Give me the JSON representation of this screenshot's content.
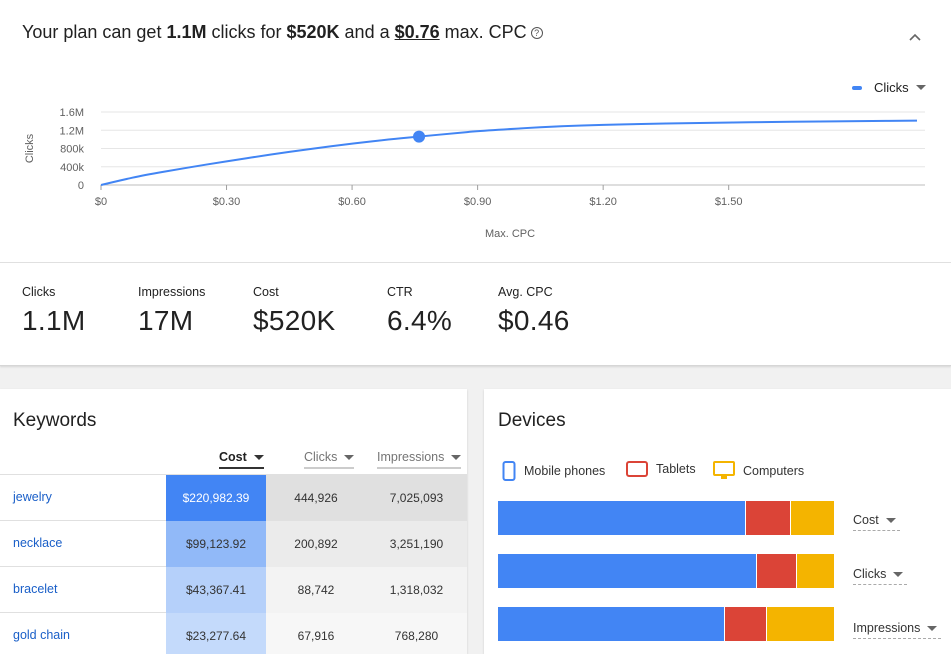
{
  "headline": {
    "prefix": "Your plan can get ",
    "clicks": "1.1M",
    "mid1": " clicks for ",
    "cost": "$520K",
    "mid2": " and a ",
    "cpc": "$0.76",
    "suffix": " max. CPC",
    "help_icon": "?"
  },
  "chart_data": {
    "type": "line",
    "series": [
      {
        "name": "Clicks",
        "color": "#4285f4",
        "x": [
          0,
          0.05,
          0.1,
          0.2,
          0.3,
          0.4,
          0.5,
          0.6,
          0.7,
          0.76,
          0.85,
          0.9,
          1.0,
          1.1,
          1.2,
          1.3,
          1.4,
          1.5,
          1.6,
          1.7,
          1.8,
          1.95
        ],
        "y": [
          0,
          110000,
          210000,
          370000,
          520000,
          660000,
          790000,
          910000,
          1010000,
          1060000,
          1140000,
          1180000,
          1240000,
          1290000,
          1320000,
          1340000,
          1355000,
          1370000,
          1380000,
          1390000,
          1400000,
          1410000
        ]
      }
    ],
    "highlight": {
      "x": 0.76,
      "y": 1060000
    },
    "xlabel": "Max. CPC",
    "ylabel": "Clicks",
    "xticks": [
      0,
      0.3,
      0.6,
      0.9,
      1.2,
      1.5
    ],
    "xtick_labels": [
      "$0",
      "$0.30",
      "$0.60",
      "$0.90",
      "$1.20",
      "$1.50"
    ],
    "yticks": [
      0,
      400000,
      800000,
      1200000,
      1600000
    ],
    "ytick_labels": [
      "0",
      "400k",
      "800k",
      "1.2M",
      "1.6M"
    ],
    "xlim": [
      0,
      1.95
    ],
    "ylim": [
      0,
      1600000
    ],
    "grid": true,
    "legend": {
      "label": "Clicks",
      "position": "top-right"
    }
  },
  "stats": [
    {
      "label": "Clicks",
      "value": "1.1M"
    },
    {
      "label": "Impressions",
      "value": "17M"
    },
    {
      "label": "Cost",
      "value": "$520K"
    },
    {
      "label": "CTR",
      "value": "6.4%"
    },
    {
      "label": "Avg. CPC",
      "value": "$0.46"
    }
  ],
  "keywords": {
    "title": "Keywords",
    "columns": {
      "cost": "Cost",
      "clicks": "Clicks",
      "impressions": "Impressions"
    },
    "rows": [
      {
        "keyword": "jewelry",
        "cost": "$220,982.39",
        "clicks": "444,926",
        "impressions": "7,025,093",
        "cost_share": 1.0
      },
      {
        "keyword": "necklace",
        "cost": "$99,123.92",
        "clicks": "200,892",
        "impressions": "3,251,190",
        "cost_share": 0.45
      },
      {
        "keyword": "bracelet",
        "cost": "$43,367.41",
        "clicks": "88,742",
        "impressions": "1,318,032",
        "cost_share": 0.2
      },
      {
        "keyword": "gold chain",
        "cost": "$23,277.64",
        "clicks": "67,916",
        "impressions": "768,280",
        "cost_share": 0.1
      }
    ]
  },
  "devices": {
    "title": "Devices",
    "legend": [
      {
        "label": "Mobile phones",
        "color": "#4285f4",
        "icon": "mobile-phone-icon"
      },
      {
        "label": "Tablets",
        "color": "#db4437",
        "icon": "tablet-icon"
      },
      {
        "label": "Computers",
        "color": "#f4b400",
        "icon": "computer-icon"
      }
    ],
    "bars": [
      {
        "label": "Cost",
        "shares": [
          0.734,
          0.134,
          0.132
        ]
      },
      {
        "label": "Clicks",
        "shares": [
          0.767,
          0.12,
          0.113
        ]
      },
      {
        "label": "Impressions",
        "shares": [
          0.673,
          0.125,
          0.202
        ]
      }
    ]
  }
}
